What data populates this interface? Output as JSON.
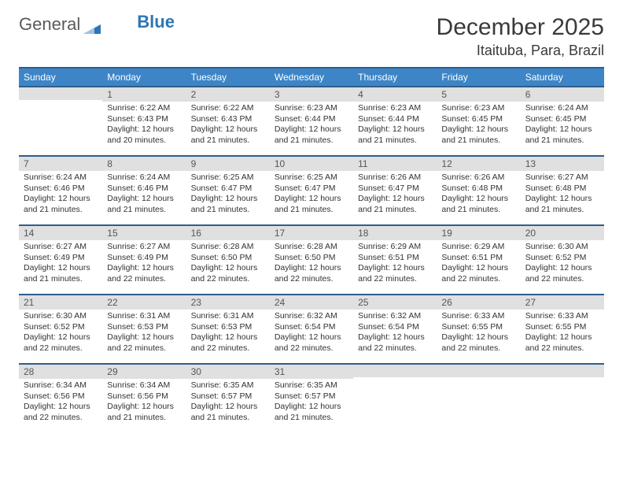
{
  "logo": {
    "text_general": "General",
    "text_blue": "Blue"
  },
  "header": {
    "month_title": "December 2025",
    "location": "Itaituba, Para, Brazil"
  },
  "colors": {
    "header_bg": "#3d85c6",
    "header_border": "#2e5e8c",
    "daynum_bg": "#e0e0e0",
    "text": "#333333",
    "logo_blue": "#2e75b6"
  },
  "weekdays": [
    "Sunday",
    "Monday",
    "Tuesday",
    "Wednesday",
    "Thursday",
    "Friday",
    "Saturday"
  ],
  "weeks": [
    [
      {
        "day": "",
        "sunrise": "",
        "sunset": "",
        "daylight": ""
      },
      {
        "day": "1",
        "sunrise": "Sunrise: 6:22 AM",
        "sunset": "Sunset: 6:43 PM",
        "daylight": "Daylight: 12 hours and 20 minutes."
      },
      {
        "day": "2",
        "sunrise": "Sunrise: 6:22 AM",
        "sunset": "Sunset: 6:43 PM",
        "daylight": "Daylight: 12 hours and 21 minutes."
      },
      {
        "day": "3",
        "sunrise": "Sunrise: 6:23 AM",
        "sunset": "Sunset: 6:44 PM",
        "daylight": "Daylight: 12 hours and 21 minutes."
      },
      {
        "day": "4",
        "sunrise": "Sunrise: 6:23 AM",
        "sunset": "Sunset: 6:44 PM",
        "daylight": "Daylight: 12 hours and 21 minutes."
      },
      {
        "day": "5",
        "sunrise": "Sunrise: 6:23 AM",
        "sunset": "Sunset: 6:45 PM",
        "daylight": "Daylight: 12 hours and 21 minutes."
      },
      {
        "day": "6",
        "sunrise": "Sunrise: 6:24 AM",
        "sunset": "Sunset: 6:45 PM",
        "daylight": "Daylight: 12 hours and 21 minutes."
      }
    ],
    [
      {
        "day": "7",
        "sunrise": "Sunrise: 6:24 AM",
        "sunset": "Sunset: 6:46 PM",
        "daylight": "Daylight: 12 hours and 21 minutes."
      },
      {
        "day": "8",
        "sunrise": "Sunrise: 6:24 AM",
        "sunset": "Sunset: 6:46 PM",
        "daylight": "Daylight: 12 hours and 21 minutes."
      },
      {
        "day": "9",
        "sunrise": "Sunrise: 6:25 AM",
        "sunset": "Sunset: 6:47 PM",
        "daylight": "Daylight: 12 hours and 21 minutes."
      },
      {
        "day": "10",
        "sunrise": "Sunrise: 6:25 AM",
        "sunset": "Sunset: 6:47 PM",
        "daylight": "Daylight: 12 hours and 21 minutes."
      },
      {
        "day": "11",
        "sunrise": "Sunrise: 6:26 AM",
        "sunset": "Sunset: 6:47 PM",
        "daylight": "Daylight: 12 hours and 21 minutes."
      },
      {
        "day": "12",
        "sunrise": "Sunrise: 6:26 AM",
        "sunset": "Sunset: 6:48 PM",
        "daylight": "Daylight: 12 hours and 21 minutes."
      },
      {
        "day": "13",
        "sunrise": "Sunrise: 6:27 AM",
        "sunset": "Sunset: 6:48 PM",
        "daylight": "Daylight: 12 hours and 21 minutes."
      }
    ],
    [
      {
        "day": "14",
        "sunrise": "Sunrise: 6:27 AM",
        "sunset": "Sunset: 6:49 PM",
        "daylight": "Daylight: 12 hours and 21 minutes."
      },
      {
        "day": "15",
        "sunrise": "Sunrise: 6:27 AM",
        "sunset": "Sunset: 6:49 PM",
        "daylight": "Daylight: 12 hours and 22 minutes."
      },
      {
        "day": "16",
        "sunrise": "Sunrise: 6:28 AM",
        "sunset": "Sunset: 6:50 PM",
        "daylight": "Daylight: 12 hours and 22 minutes."
      },
      {
        "day": "17",
        "sunrise": "Sunrise: 6:28 AM",
        "sunset": "Sunset: 6:50 PM",
        "daylight": "Daylight: 12 hours and 22 minutes."
      },
      {
        "day": "18",
        "sunrise": "Sunrise: 6:29 AM",
        "sunset": "Sunset: 6:51 PM",
        "daylight": "Daylight: 12 hours and 22 minutes."
      },
      {
        "day": "19",
        "sunrise": "Sunrise: 6:29 AM",
        "sunset": "Sunset: 6:51 PM",
        "daylight": "Daylight: 12 hours and 22 minutes."
      },
      {
        "day": "20",
        "sunrise": "Sunrise: 6:30 AM",
        "sunset": "Sunset: 6:52 PM",
        "daylight": "Daylight: 12 hours and 22 minutes."
      }
    ],
    [
      {
        "day": "21",
        "sunrise": "Sunrise: 6:30 AM",
        "sunset": "Sunset: 6:52 PM",
        "daylight": "Daylight: 12 hours and 22 minutes."
      },
      {
        "day": "22",
        "sunrise": "Sunrise: 6:31 AM",
        "sunset": "Sunset: 6:53 PM",
        "daylight": "Daylight: 12 hours and 22 minutes."
      },
      {
        "day": "23",
        "sunrise": "Sunrise: 6:31 AM",
        "sunset": "Sunset: 6:53 PM",
        "daylight": "Daylight: 12 hours and 22 minutes."
      },
      {
        "day": "24",
        "sunrise": "Sunrise: 6:32 AM",
        "sunset": "Sunset: 6:54 PM",
        "daylight": "Daylight: 12 hours and 22 minutes."
      },
      {
        "day": "25",
        "sunrise": "Sunrise: 6:32 AM",
        "sunset": "Sunset: 6:54 PM",
        "daylight": "Daylight: 12 hours and 22 minutes."
      },
      {
        "day": "26",
        "sunrise": "Sunrise: 6:33 AM",
        "sunset": "Sunset: 6:55 PM",
        "daylight": "Daylight: 12 hours and 22 minutes."
      },
      {
        "day": "27",
        "sunrise": "Sunrise: 6:33 AM",
        "sunset": "Sunset: 6:55 PM",
        "daylight": "Daylight: 12 hours and 22 minutes."
      }
    ],
    [
      {
        "day": "28",
        "sunrise": "Sunrise: 6:34 AM",
        "sunset": "Sunset: 6:56 PM",
        "daylight": "Daylight: 12 hours and 22 minutes."
      },
      {
        "day": "29",
        "sunrise": "Sunrise: 6:34 AM",
        "sunset": "Sunset: 6:56 PM",
        "daylight": "Daylight: 12 hours and 21 minutes."
      },
      {
        "day": "30",
        "sunrise": "Sunrise: 6:35 AM",
        "sunset": "Sunset: 6:57 PM",
        "daylight": "Daylight: 12 hours and 21 minutes."
      },
      {
        "day": "31",
        "sunrise": "Sunrise: 6:35 AM",
        "sunset": "Sunset: 6:57 PM",
        "daylight": "Daylight: 12 hours and 21 minutes."
      },
      {
        "day": "",
        "sunrise": "",
        "sunset": "",
        "daylight": ""
      },
      {
        "day": "",
        "sunrise": "",
        "sunset": "",
        "daylight": ""
      },
      {
        "day": "",
        "sunrise": "",
        "sunset": "",
        "daylight": ""
      }
    ]
  ]
}
